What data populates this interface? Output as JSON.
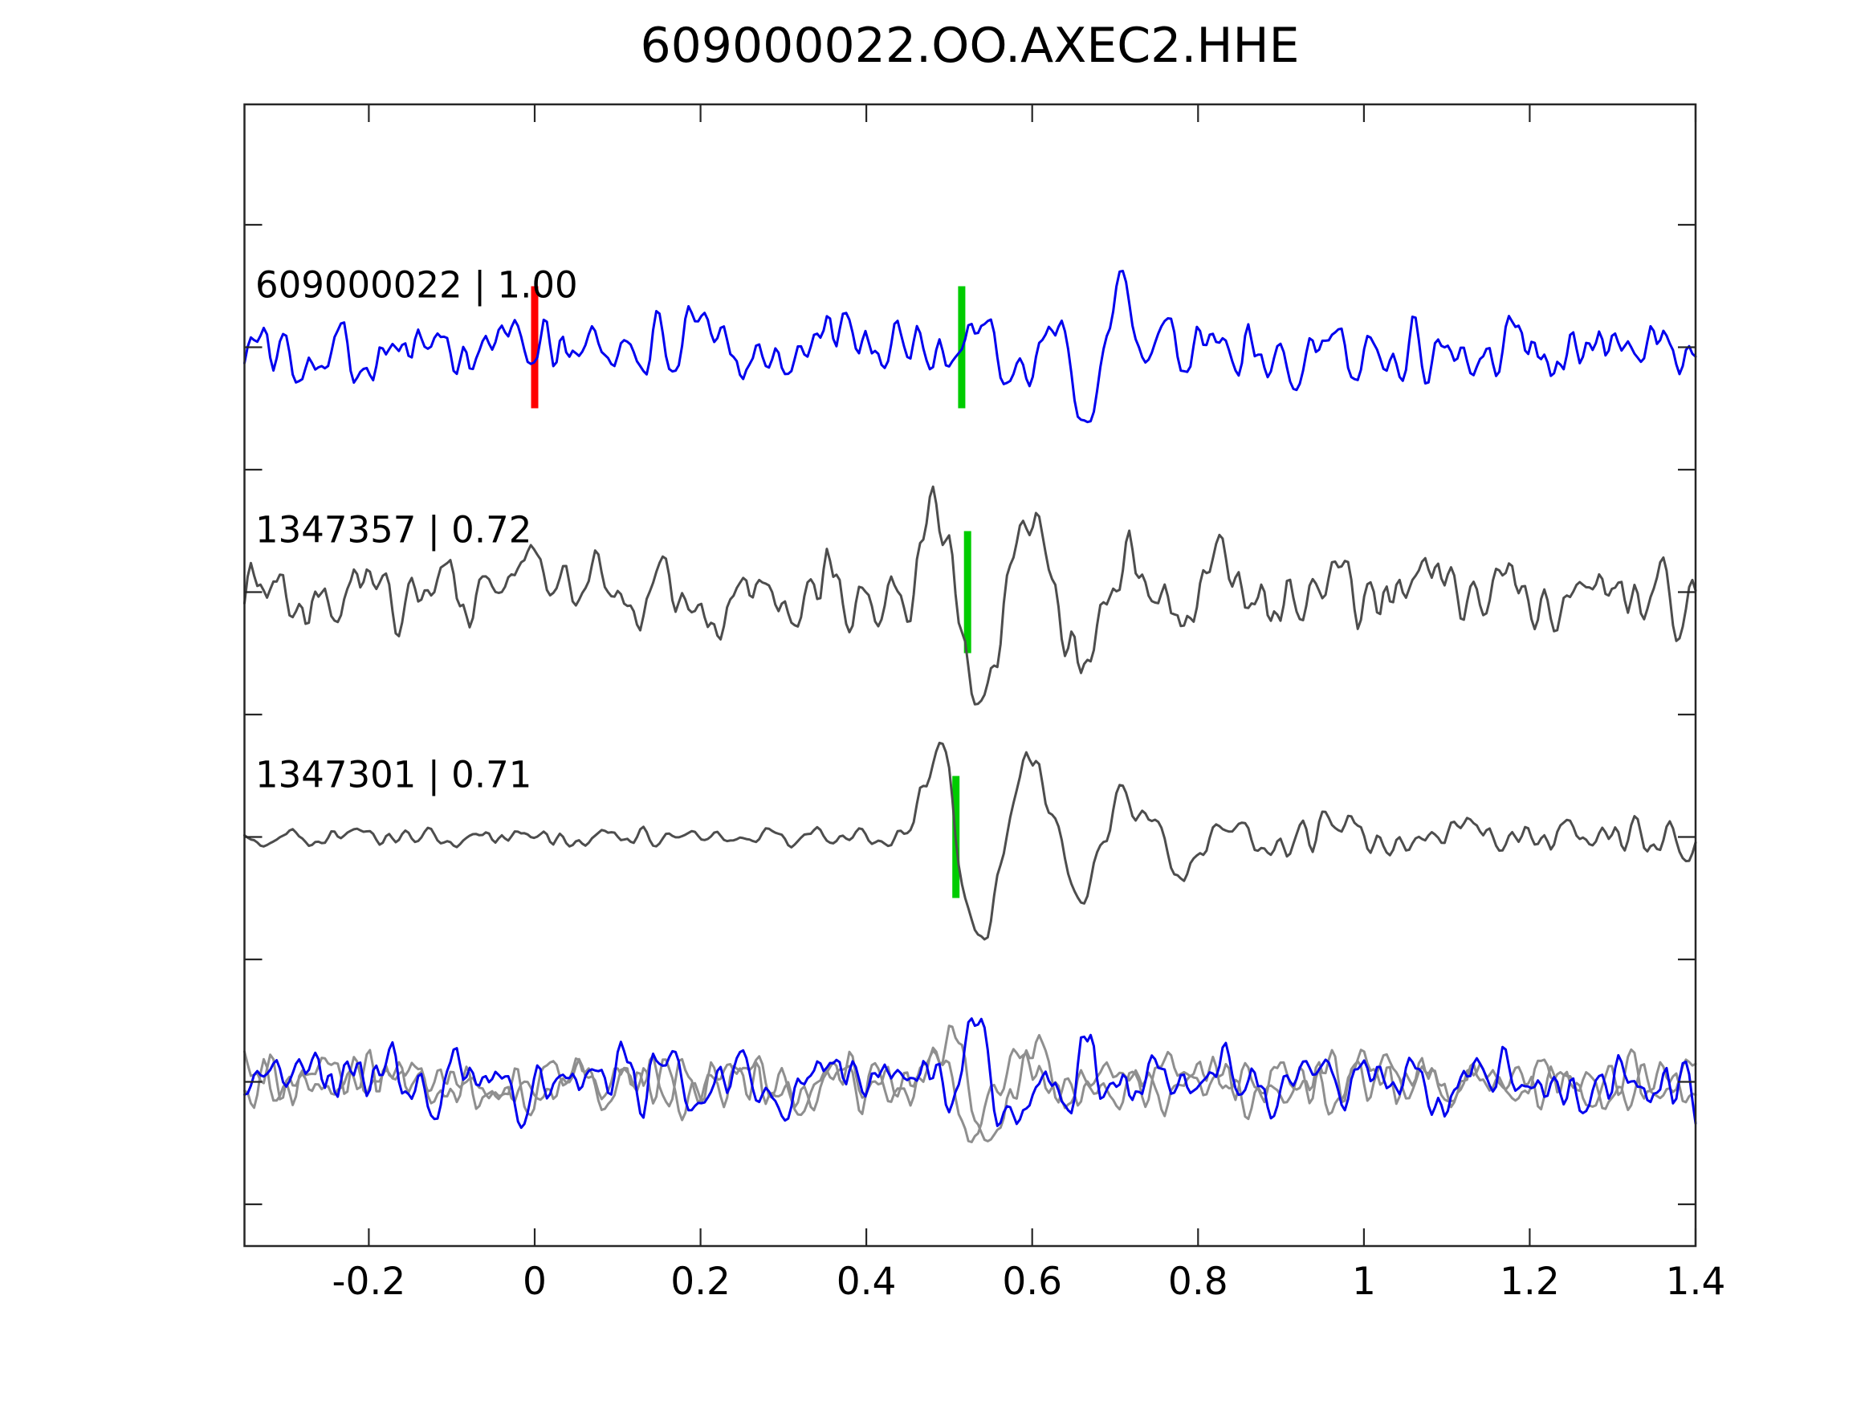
{
  "title": "609000022.OO.AXEC2.HHE",
  "colors": {
    "background": "#ffffff",
    "axis": "#262626",
    "text": "#000000",
    "template_blue": "#0000ee",
    "detection_gray": "#4d4d4d",
    "overlay_gray": "#8f8f8f",
    "pick_green": "#00cc00",
    "origin_red": "#ff0000"
  },
  "chart_data": {
    "type": "line",
    "title": "609000022.OO.AXEC2.HHE",
    "xlabel": "",
    "ylabel": "",
    "xlim": [
      -0.35,
      1.4
    ],
    "x_ticks": [
      -0.2,
      0,
      0.2,
      0.4,
      0.6,
      0.8,
      1,
      1.2,
      1.4
    ],
    "x_tick_labels": [
      "-0.2",
      "0",
      "0.2",
      "0.4",
      "0.6",
      "0.8",
      "1",
      "1.2",
      "1.4"
    ],
    "y_tick_labels": [],
    "grid": false,
    "legend": null,
    "description": "Seismic waveform correlation plot: template trace (blue) vs two detected event traces (dark gray) and an overlay row (template grays + detection blue). Red bar = origin time 0, green bars = picks near t=0.51.",
    "rows": [
      {
        "row": 0,
        "id": "609000022",
        "label": "609000022 | 1.00",
        "correlation": 1.0,
        "color": "#0000ee",
        "picks": [
          {
            "time": 0.0,
            "color": "#ff0000",
            "name": "origin"
          },
          {
            "time": 0.515,
            "color": "#00cc00",
            "name": "pick"
          }
        ],
        "synth": {
          "seed": 101,
          "sigma": 21,
          "events": [
            {
              "t": 0.505,
              "amp": 95,
              "period": 0.1,
              "decay": 0.13
            },
            {
              "t": 0.64,
              "amp": -220,
              "period": 0.085,
              "decay": 0.05
            }
          ]
        }
      },
      {
        "row": 1,
        "id": "1347357",
        "label": "1347357 | 0.72",
        "correlation": 0.72,
        "color": "#4d4d4d",
        "picks": [
          {
            "time": 0.522,
            "color": "#00cc00",
            "name": "pick"
          }
        ],
        "synth": {
          "seed": 207,
          "sigma": 23,
          "events": [
            {
              "t": 0.452,
              "amp": 185,
              "period": 0.118,
              "decay": 0.22
            }
          ]
        }
      },
      {
        "row": 2,
        "id": "1347301",
        "label": "1347301 | 0.71",
        "correlation": 0.71,
        "color": "#4d4d4d",
        "picks": [
          {
            "time": 0.508,
            "color": "#00cc00",
            "name": "pick"
          }
        ],
        "synth": {
          "seed": 305,
          "sigma": 13,
          "sigma_pre": 6,
          "t_change": 0.44,
          "events": [
            {
              "t": 0.448,
              "amp": 200,
              "period": 0.122,
              "decay": 0.18
            }
          ]
        }
      },
      {
        "row": 3,
        "id": "overlay-template-1",
        "label": "",
        "color": "#8f8f8f",
        "picks": [],
        "synth": {
          "seed": 411,
          "sigma": 17,
          "events": [
            {
              "t": 0.452,
              "amp": 135,
              "period": 0.105,
              "decay": 0.09
            }
          ]
        }
      },
      {
        "row": 3,
        "id": "overlay-template-2",
        "label": "",
        "color": "#8f8f8f",
        "picks": [],
        "synth": {
          "seed": 523,
          "sigma": 17,
          "events": [
            {
              "t": 0.468,
              "amp": 145,
              "period": 0.112,
              "decay": 0.095
            }
          ]
        }
      },
      {
        "row": 3,
        "id": "overlay-detection",
        "label": "",
        "color": "#0000ee",
        "picks": [],
        "synth": {
          "seed": 631,
          "sigma": 20,
          "events": [
            {
              "t": 0.5,
              "amp": 120,
              "period": 0.105,
              "decay": 0.1
            },
            {
              "t": 0.615,
              "amp": -200,
              "period": 0.08,
              "decay": 0.045
            }
          ]
        }
      }
    ]
  }
}
